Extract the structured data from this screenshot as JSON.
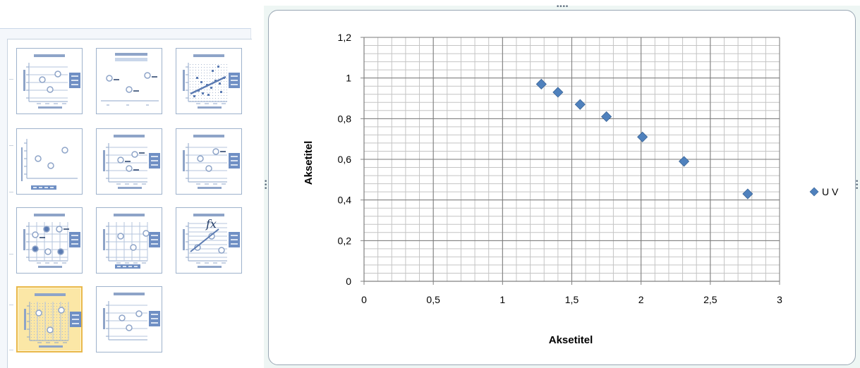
{
  "gallery": {
    "layouts": [
      {
        "name": "layout-1",
        "selected": false
      },
      {
        "name": "layout-2",
        "selected": false
      },
      {
        "name": "layout-3",
        "selected": false
      },
      {
        "name": "layout-4",
        "selected": false
      },
      {
        "name": "layout-5",
        "selected": false
      },
      {
        "name": "layout-6",
        "selected": false
      },
      {
        "name": "layout-7",
        "selected": false
      },
      {
        "name": "layout-8",
        "selected": false
      },
      {
        "name": "layout-9",
        "selected": false
      },
      {
        "name": "layout-10",
        "selected": true
      },
      {
        "name": "layout-11",
        "selected": false
      }
    ],
    "formula_glyph": "fx"
  },
  "chart_data": {
    "type": "scatter",
    "title": "",
    "xlabel": "Aksetitel",
    "ylabel": "Aksetitel",
    "xlim": [
      0,
      3
    ],
    "ylim": [
      0,
      1.2
    ],
    "x_ticks": [
      "0",
      "0,5",
      "1",
      "1,5",
      "2",
      "2,5",
      "3"
    ],
    "y_ticks": [
      "0",
      "0,2",
      "0,4",
      "0,6",
      "0,8",
      "1",
      "1,2"
    ],
    "grid": true,
    "legend": "right",
    "series": [
      {
        "name": "U V",
        "marker": "diamond",
        "color": "#4f81bd",
        "x": [
          1.28,
          1.4,
          1.56,
          1.75,
          2.01,
          2.31,
          2.77
        ],
        "y": [
          0.97,
          0.93,
          0.87,
          0.81,
          0.71,
          0.59,
          0.43
        ]
      }
    ]
  }
}
